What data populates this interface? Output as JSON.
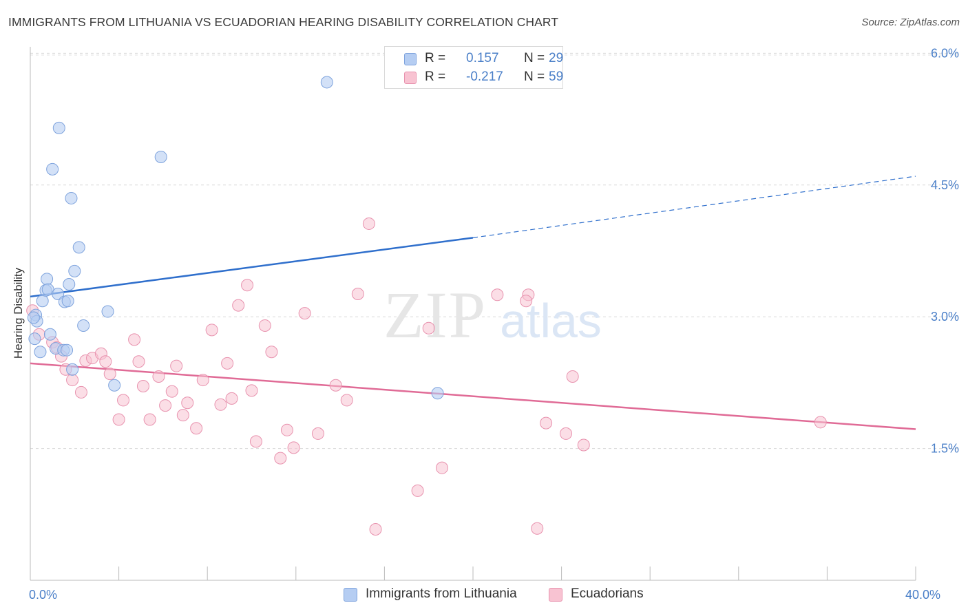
{
  "title": "IMMIGRANTS FROM LITHUANIA VS ECUADORIAN HEARING DISABILITY CORRELATION CHART",
  "source": "Source: ZipAtlas.com",
  "watermark": {
    "zip": "ZIP",
    "atlas": "atlas"
  },
  "stats": [
    {
      "r_label": "R =",
      "r_value": "0.157",
      "n_label": "N =",
      "n_value": "29"
    },
    {
      "r_label": "R =",
      "r_value": "-0.217",
      "n_label": "N =",
      "n_value": "59"
    }
  ],
  "legend": [
    {
      "label": "Immigrants from Lithuania"
    },
    {
      "label": "Ecuadorians"
    }
  ],
  "colors": {
    "blue_fill": "#b5cdf2",
    "blue_stroke": "#7ea3dd",
    "blue_line": "#2f6fcc",
    "pink_fill": "#f8c3d2",
    "pink_stroke": "#e892ae",
    "pink_line": "#e06b96",
    "tick_text": "#4a7fc8"
  },
  "chart_data": {
    "type": "scatter",
    "title": "IMMIGRANTS FROM LITHUANIA VS ECUADORIAN HEARING DISABILITY CORRELATION CHART",
    "xlabel": "",
    "ylabel": "Hearing Disability",
    "xlim": [
      0,
      40
    ],
    "ylim": [
      0,
      6.3
    ],
    "x_tick_labels": [
      {
        "value": 0,
        "label": "0.0%"
      },
      {
        "value": 40,
        "label": "40.0%"
      }
    ],
    "y_tick_labels": [
      {
        "value": 1.5,
        "label": "1.5%"
      },
      {
        "value": 3.0,
        "label": "3.0%"
      },
      {
        "value": 4.5,
        "label": "4.5%"
      },
      {
        "value": 6.0,
        "label": "6.0%"
      }
    ],
    "grid": "horizontal dashed",
    "legend_position": "bottom",
    "series": [
      {
        "name": "Immigrants from Lithuania",
        "points": [
          [
            0.2,
            2.75
          ],
          [
            0.25,
            3.02
          ],
          [
            0.3,
            2.95
          ],
          [
            0.45,
            2.6
          ],
          [
            0.55,
            3.18
          ],
          [
            0.7,
            3.3
          ],
          [
            0.75,
            3.43
          ],
          [
            0.8,
            3.31
          ],
          [
            0.9,
            2.8
          ],
          [
            1.0,
            4.68
          ],
          [
            1.15,
            2.64
          ],
          [
            1.25,
            3.26
          ],
          [
            1.3,
            5.15
          ],
          [
            1.5,
            2.62
          ],
          [
            1.55,
            3.17
          ],
          [
            1.65,
            2.62
          ],
          [
            1.7,
            3.18
          ],
          [
            1.75,
            3.37
          ],
          [
            1.85,
            4.35
          ],
          [
            1.9,
            2.4
          ],
          [
            2.0,
            3.52
          ],
          [
            2.2,
            3.79
          ],
          [
            2.4,
            2.9
          ],
          [
            3.5,
            3.06
          ],
          [
            3.8,
            2.22
          ],
          [
            5.9,
            4.82
          ],
          [
            13.4,
            5.67
          ],
          [
            18.4,
            2.13
          ],
          [
            0.15,
            2.99
          ]
        ],
        "trend": {
          "x": [
            0,
            20
          ],
          "y": [
            3.23,
            3.9
          ],
          "extended_to": [
            40,
            4.6
          ]
        }
      },
      {
        "name": "Ecuadorians",
        "points": [
          [
            0.1,
            3.07
          ],
          [
            0.4,
            2.8
          ],
          [
            1.0,
            2.71
          ],
          [
            1.2,
            2.65
          ],
          [
            1.4,
            2.55
          ],
          [
            1.6,
            2.4
          ],
          [
            1.9,
            2.28
          ],
          [
            2.3,
            2.14
          ],
          [
            2.5,
            2.5
          ],
          [
            2.8,
            2.53
          ],
          [
            3.2,
            2.58
          ],
          [
            3.4,
            2.49
          ],
          [
            3.6,
            2.35
          ],
          [
            4.0,
            1.83
          ],
          [
            4.2,
            2.05
          ],
          [
            4.7,
            2.74
          ],
          [
            4.9,
            2.49
          ],
          [
            5.1,
            2.21
          ],
          [
            5.4,
            1.83
          ],
          [
            5.8,
            2.32
          ],
          [
            6.1,
            1.99
          ],
          [
            6.4,
            2.15
          ],
          [
            6.6,
            2.44
          ],
          [
            6.9,
            1.88
          ],
          [
            7.1,
            2.02
          ],
          [
            7.5,
            1.73
          ],
          [
            7.8,
            2.28
          ],
          [
            8.2,
            2.85
          ],
          [
            8.6,
            2.0
          ],
          [
            8.9,
            2.47
          ],
          [
            9.1,
            2.07
          ],
          [
            9.4,
            3.13
          ],
          [
            9.8,
            3.36
          ],
          [
            10.0,
            2.16
          ],
          [
            10.2,
            1.58
          ],
          [
            10.6,
            2.9
          ],
          [
            10.9,
            2.6
          ],
          [
            11.3,
            1.39
          ],
          [
            11.6,
            1.71
          ],
          [
            11.9,
            1.51
          ],
          [
            12.4,
            3.04
          ],
          [
            13.0,
            1.67
          ],
          [
            13.8,
            2.22
          ],
          [
            14.3,
            2.05
          ],
          [
            14.8,
            3.26
          ],
          [
            15.3,
            4.06
          ],
          [
            15.6,
            0.58
          ],
          [
            17.5,
            1.02
          ],
          [
            18.0,
            2.87
          ],
          [
            18.6,
            1.28
          ],
          [
            21.1,
            3.25
          ],
          [
            22.5,
            3.25
          ],
          [
            22.9,
            0.59
          ],
          [
            23.3,
            1.79
          ],
          [
            24.2,
            1.67
          ],
          [
            24.5,
            2.32
          ],
          [
            25.0,
            1.54
          ],
          [
            35.7,
            1.8
          ],
          [
            22.4,
            3.18
          ]
        ],
        "trend": {
          "x": [
            0,
            40
          ],
          "y": [
            2.47,
            1.72
          ]
        }
      }
    ]
  }
}
